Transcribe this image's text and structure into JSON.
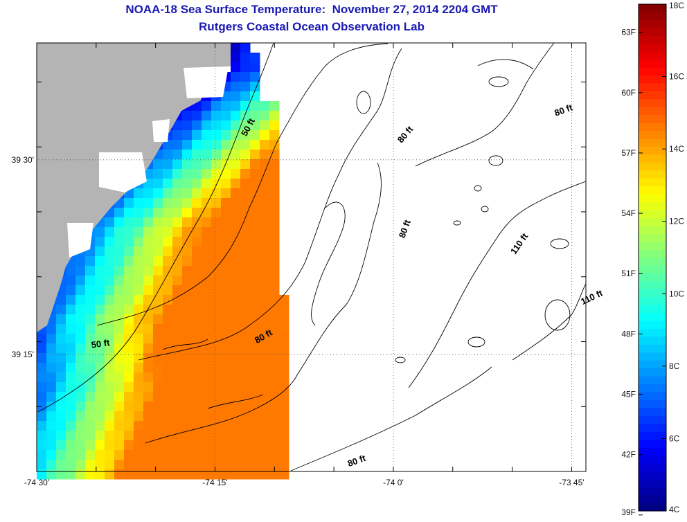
{
  "title": "NOAA-18 Sea Surface Temperature:  November 27, 2014 2204 GMT",
  "subtitle": "Rutgers Coastal Ocean Observation Lab",
  "colors": {
    "land": "#b4b4b4",
    "cloud": "#ffffff",
    "contour": "#000000",
    "title": "#1a1ab4"
  },
  "map": {
    "lon_range": [
      -74.5,
      -73.73
    ],
    "lat_range": [
      39.1,
      39.65
    ],
    "lon_ticks": [
      {
        "value": -74.5,
        "label": "-74 30'"
      },
      {
        "value": -74.25,
        "label": "-74 15'"
      },
      {
        "value": -74.0,
        "label": "-74 0'"
      },
      {
        "value": -73.75,
        "label": "-73 45'"
      }
    ],
    "lat_ticks": [
      {
        "value": 39.5,
        "label": "39 30'"
      },
      {
        "value": 39.25,
        "label": "39 15'"
      }
    ],
    "contour_labels": [
      {
        "text": "50 ft",
        "lon": -74.2,
        "lat": 39.54,
        "angle": -62
      },
      {
        "text": "50 ft",
        "lon": -74.41,
        "lat": 39.26,
        "angle": -8
      },
      {
        "text": "80 ft",
        "lon": -73.98,
        "lat": 39.53,
        "angle": -50
      },
      {
        "text": "80 ft",
        "lon": -73.98,
        "lat": 39.41,
        "angle": -70
      },
      {
        "text": "80 ft",
        "lon": -74.18,
        "lat": 39.27,
        "angle": -30
      },
      {
        "text": "80 ft",
        "lon": -74.05,
        "lat": 39.11,
        "angle": -20
      },
      {
        "text": "80 ft",
        "lon": -73.76,
        "lat": 39.56,
        "angle": -20
      },
      {
        "text": "110 ft",
        "lon": -73.82,
        "lat": 39.39,
        "angle": -55
      },
      {
        "text": "110 ft",
        "lon": -73.72,
        "lat": 39.32,
        "angle": -25
      }
    ]
  },
  "colorbar": {
    "celsius_range": [
      4,
      18
    ],
    "celsius_labels": [
      "18C",
      "16C",
      "14C",
      "12C",
      "10C",
      "8C",
      "6C",
      "4C"
    ],
    "fahrenheit_labels": [
      "63F",
      "60F",
      "57F",
      "54F",
      "51F",
      "48F",
      "45F",
      "42F",
      "39F"
    ]
  }
}
